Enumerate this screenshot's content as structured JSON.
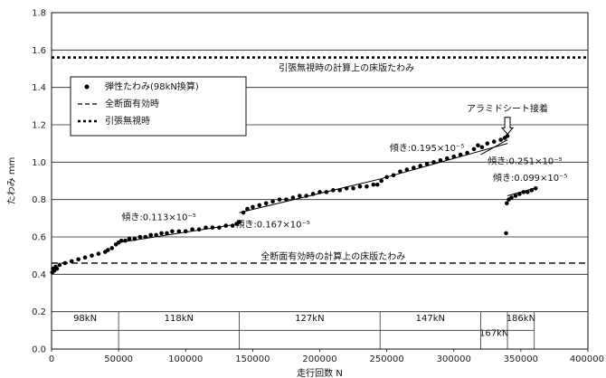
{
  "chart_data": {
    "type": "scatter",
    "xlabel": "走行回数 N",
    "ylabel": "たわみ mm",
    "xlim": [
      0,
      400000
    ],
    "ylim": [
      0,
      1.8
    ],
    "x_ticks": [
      0,
      50000,
      100000,
      150000,
      200000,
      250000,
      300000,
      350000,
      400000
    ],
    "x_tick_labels": [
      "0",
      "50000",
      "100000",
      "150000",
      "200000",
      "250000",
      "300000",
      "350000",
      "400000"
    ],
    "y_ticks": [
      0,
      0.2,
      0.4,
      0.6,
      0.8,
      1.0,
      1.2,
      1.4,
      1.6,
      1.8
    ],
    "y_tick_labels": [
      "0.0",
      "0.2",
      "0.4",
      "0.6",
      "0.8",
      "1.0",
      "1.2",
      "1.4",
      "1.6",
      "1.8"
    ],
    "grid": "horizontal",
    "legend": {
      "placement": "upper-left",
      "entries": [
        {
          "label": "弾性たわみ(98kN換算)",
          "marker": "dot"
        },
        {
          "label": "全断面有効時",
          "marker": "dashed"
        },
        {
          "label": "引張無視時",
          "marker": "dotted"
        }
      ]
    },
    "reference_lines": [
      {
        "name": "引張無視時",
        "y": 1.56,
        "style": "dotted",
        "label": "引張無視時の計算上の床版たわみ"
      },
      {
        "name": "全断面有効時",
        "y": 0.46,
        "style": "dashed",
        "label": "全断面有効時の計算上の床版たわみ"
      }
    ],
    "load_stages": [
      {
        "label": "98kN",
        "start": 0,
        "end": 50000
      },
      {
        "label": "118kN",
        "start": 50000,
        "end": 140000
      },
      {
        "label": "127kN",
        "start": 140000,
        "end": 245000
      },
      {
        "label": "147kN",
        "start": 245000,
        "end": 320000
      },
      {
        "label": "167kN",
        "start": 320000,
        "end": 340000
      },
      {
        "label": "186kN",
        "start": 340000,
        "end": 360000
      }
    ],
    "trend_lines": [
      {
        "label": "傾き:0.113×10⁻⁵",
        "x": [
          50000,
          140000
        ],
        "y": [
          0.57,
          0.67
        ]
      },
      {
        "label": "傾き:0.167×10⁻⁵",
        "x": [
          140000,
          245000
        ],
        "y": [
          0.73,
          0.91
        ]
      },
      {
        "label": "傾き:0.195×10⁻⁵",
        "x": [
          245000,
          340000
        ],
        "y": [
          0.91,
          1.1
        ]
      },
      {
        "label": "傾き:0.251×10⁻⁵",
        "x": [
          320000,
          340000
        ],
        "y": [
          1.04,
          1.12
        ]
      },
      {
        "label": "傾き:0.099×10⁻⁵",
        "x": [
          340000,
          360000
        ],
        "y": [
          0.82,
          0.86
        ]
      }
    ],
    "annotation": {
      "label": "アラミドシート接着",
      "x": 340000,
      "y_from": 1.24,
      "y_to": 1.15
    },
    "series": [
      {
        "name": "弾性たわみ(98kN換算)",
        "x": [
          500,
          1000,
          2000,
          3000,
          4000,
          6000,
          10000,
          15000,
          20000,
          25000,
          30000,
          35000,
          40000,
          42000,
          45000,
          48000,
          50000,
          52000,
          55000,
          58000,
          62000,
          66000,
          70000,
          74000,
          78000,
          82000,
          86000,
          90000,
          95000,
          100000,
          105000,
          110000,
          115000,
          120000,
          125000,
          130000,
          135000,
          138000,
          140000,
          143000,
          146000,
          150000,
          155000,
          160000,
          165000,
          170000,
          175000,
          180000,
          185000,
          190000,
          195000,
          200000,
          205000,
          210000,
          215000,
          220000,
          225000,
          230000,
          235000,
          240000,
          243000,
          246000,
          250000,
          255000,
          260000,
          265000,
          270000,
          275000,
          280000,
          285000,
          290000,
          295000,
          300000,
          305000,
          310000,
          315000,
          318000,
          321000,
          325000,
          330000,
          335000,
          338000,
          340000,
          339000,
          339500,
          341000,
          343000,
          346000,
          349000,
          352000,
          355000,
          358000,
          361000
        ],
        "y": [
          0.41,
          0.43,
          0.42,
          0.44,
          0.43,
          0.45,
          0.46,
          0.47,
          0.48,
          0.49,
          0.5,
          0.51,
          0.52,
          0.53,
          0.54,
          0.56,
          0.57,
          0.58,
          0.58,
          0.59,
          0.59,
          0.6,
          0.6,
          0.61,
          0.61,
          0.62,
          0.62,
          0.63,
          0.63,
          0.63,
          0.64,
          0.64,
          0.65,
          0.65,
          0.65,
          0.66,
          0.66,
          0.67,
          0.68,
          0.73,
          0.75,
          0.76,
          0.77,
          0.78,
          0.79,
          0.8,
          0.8,
          0.81,
          0.82,
          0.82,
          0.83,
          0.84,
          0.84,
          0.85,
          0.85,
          0.86,
          0.86,
          0.87,
          0.87,
          0.88,
          0.88,
          0.9,
          0.92,
          0.93,
          0.95,
          0.96,
          0.97,
          0.98,
          0.99,
          1.0,
          1.01,
          1.02,
          1.03,
          1.04,
          1.05,
          1.07,
          1.09,
          1.08,
          1.1,
          1.11,
          1.12,
          1.13,
          1.14,
          0.62,
          0.78,
          0.8,
          0.81,
          0.82,
          0.83,
          0.84,
          0.84,
          0.85,
          0.86
        ]
      }
    ]
  }
}
